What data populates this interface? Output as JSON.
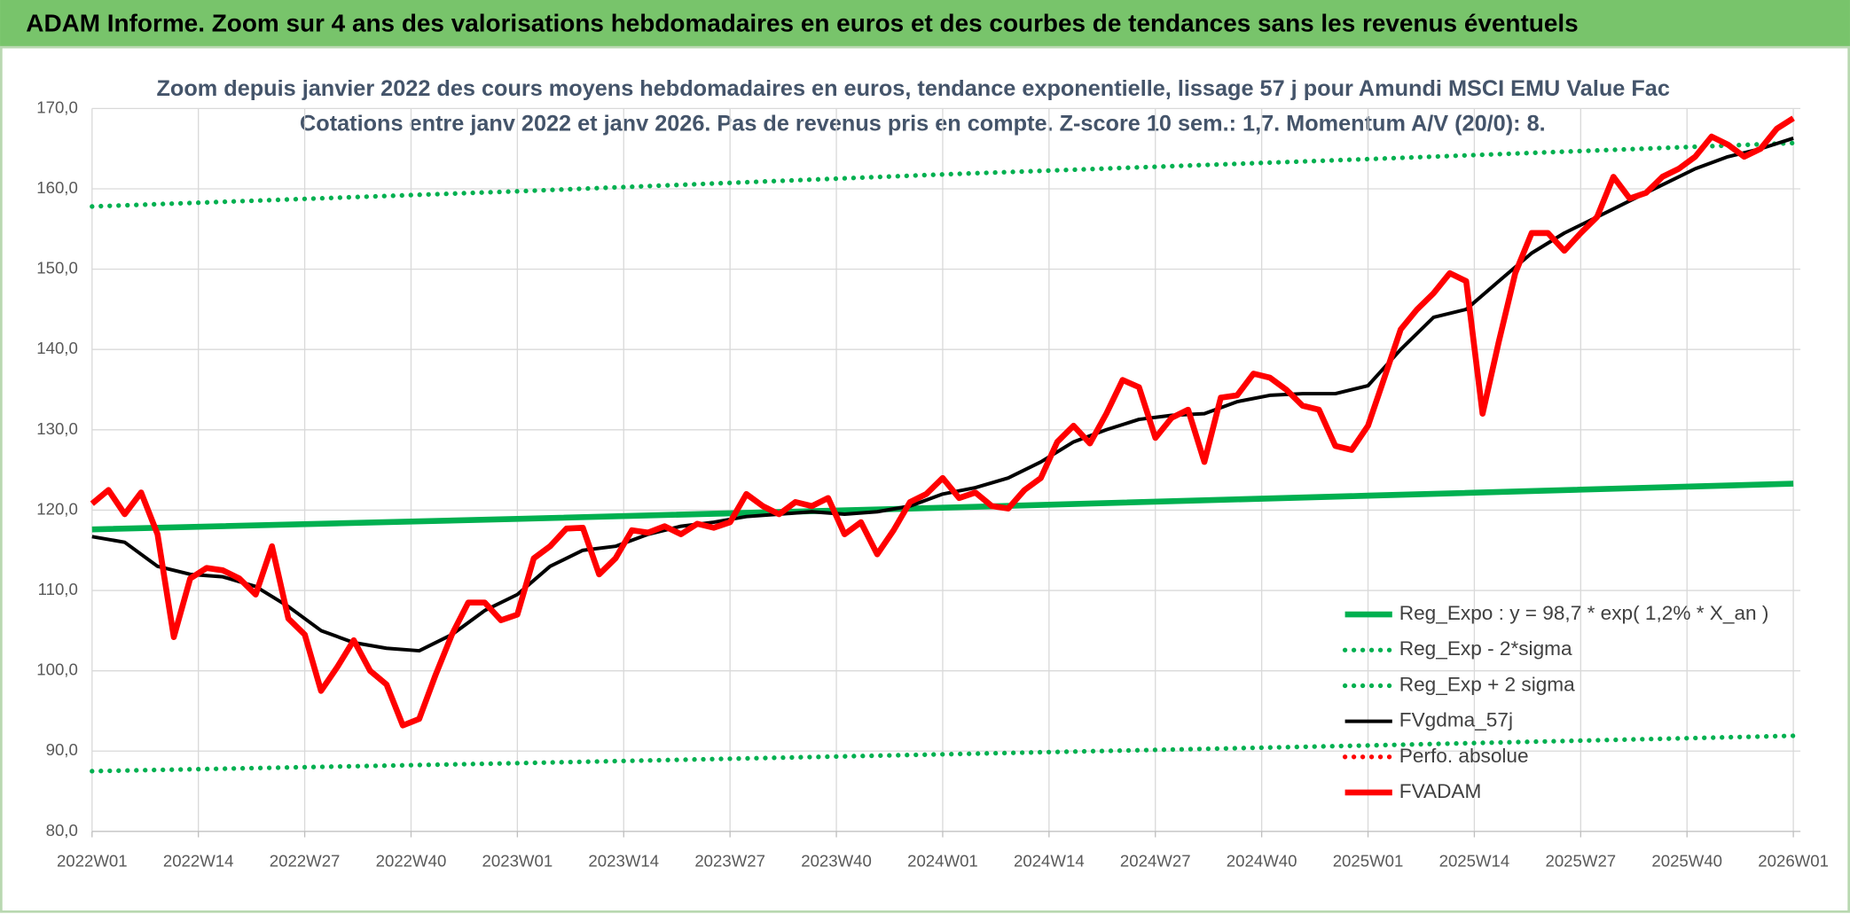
{
  "header": {
    "title": "ADAM Informe. Zoom sur 4 ans des valorisations hebdomadaires en euros et des courbes de tendances sans les revenus éventuels"
  },
  "chart_data": {
    "type": "line",
    "title": "Zoom depuis janvier 2022 des cours moyens hebdomadaires en euros, tendance exponentielle, lissage 57 j pour Amundi MSCI EMU Value Fac",
    "subtitle": "Cotations entre janv 2022 et janv 2026. Pas de revenus pris en compte. Z-score 10 sem.: 1,7. Momentum A/V (20/0): 8.",
    "xlim": [
      0,
      208
    ],
    "xticks": [
      {
        "value": 0,
        "label": "2022W01"
      },
      {
        "value": 13,
        "label": "2022W14"
      },
      {
        "value": 26,
        "label": "2022W27"
      },
      {
        "value": 39,
        "label": "2022W40"
      },
      {
        "value": 52,
        "label": "2023W01"
      },
      {
        "value": 65,
        "label": "2023W14"
      },
      {
        "value": 78,
        "label": "2023W27"
      },
      {
        "value": 91,
        "label": "2023W40"
      },
      {
        "value": 104,
        "label": "2024W01"
      },
      {
        "value": 117,
        "label": "2024W14"
      },
      {
        "value": 130,
        "label": "2024W27"
      },
      {
        "value": 143,
        "label": "2024W40"
      },
      {
        "value": 156,
        "label": "2025W01"
      },
      {
        "value": 169,
        "label": "2025W14"
      },
      {
        "value": 182,
        "label": "2025W27"
      },
      {
        "value": 195,
        "label": "2025W40"
      },
      {
        "value": 208,
        "label": "2026W01"
      }
    ],
    "ylim": [
      80,
      170
    ],
    "yticks": [
      {
        "value": 80,
        "label": "80,0"
      },
      {
        "value": 90,
        "label": "90,0"
      },
      {
        "value": 100,
        "label": "100,0"
      },
      {
        "value": 110,
        "label": "110,0"
      },
      {
        "value": 120,
        "label": "120,0"
      },
      {
        "value": 130,
        "label": "130,0"
      },
      {
        "value": 140,
        "label": "140,0"
      },
      {
        "value": 150,
        "label": "150,0"
      },
      {
        "value": 160,
        "label": "160,0"
      },
      {
        "value": 170,
        "label": "170,0"
      }
    ],
    "grid": true,
    "legend": "lower right",
    "series": [
      {
        "name": "Reg_Expo : y = 98,7 * exp( 1,2% *  X_an )",
        "color": "#00b050",
        "style": "solid",
        "x": [
          0,
          52,
          104,
          156,
          208
        ],
        "values": [
          117.6,
          118.9,
          120.3,
          121.8,
          123.3
        ]
      },
      {
        "name": "Reg_Exp - 2*sigma",
        "color": "#00b050",
        "style": "dotted",
        "x": [
          0,
          52,
          104,
          156,
          208
        ],
        "values": [
          87.5,
          88.5,
          89.6,
          90.7,
          91.9
        ]
      },
      {
        "name": "Reg_Exp + 2 sigma",
        "color": "#00b050",
        "style": "dotted",
        "x": [
          0,
          52,
          104,
          156,
          208
        ],
        "values": [
          157.8,
          159.7,
          161.8,
          163.7,
          165.7
        ]
      },
      {
        "name": "FVgdma_57j",
        "color": "#000000",
        "style": "solid",
        "x": [
          0,
          4,
          8,
          12,
          16,
          20,
          24,
          28,
          32,
          36,
          40,
          44,
          48,
          52,
          56,
          60,
          64,
          68,
          72,
          76,
          80,
          84,
          88,
          92,
          96,
          100,
          104,
          108,
          112,
          116,
          120,
          124,
          128,
          132,
          136,
          140,
          144,
          148,
          152,
          156,
          160,
          164,
          168,
          172,
          176,
          180,
          184,
          188,
          192,
          196,
          200,
          204,
          208
        ],
        "values": [
          116.7,
          116,
          113,
          112,
          111.7,
          110.5,
          108,
          105,
          103.5,
          102.8,
          102.5,
          104.5,
          107.5,
          109.5,
          113,
          115,
          115.5,
          117,
          118,
          118.5,
          119.2,
          119.5,
          119.8,
          119.5,
          119.8,
          120.5,
          122,
          122.8,
          124,
          126,
          128.5,
          130,
          131.3,
          131.8,
          132,
          133.5,
          134.3,
          134.5,
          134.5,
          135.5,
          140,
          144,
          145,
          148.5,
          152,
          154.5,
          156.5,
          158.5,
          160.5,
          162.5,
          164,
          165,
          166.3
        ]
      },
      {
        "name": "Perfo. absolue",
        "color": "#ff0000",
        "style": "dotted",
        "x": [],
        "values": []
      },
      {
        "name": "FVADAM",
        "color": "#ff0000",
        "style": "solid",
        "x": [
          0,
          2,
          4,
          6,
          8,
          10,
          12,
          14,
          16,
          18,
          20,
          22,
          24,
          26,
          28,
          30,
          32,
          34,
          36,
          38,
          40,
          42,
          44,
          46,
          48,
          50,
          52,
          54,
          56,
          58,
          60,
          62,
          64,
          66,
          68,
          70,
          72,
          74,
          76,
          78,
          80,
          82,
          84,
          86,
          88,
          90,
          92,
          94,
          96,
          98,
          100,
          102,
          104,
          106,
          108,
          110,
          112,
          114,
          116,
          118,
          120,
          122,
          124,
          126,
          128,
          130,
          132,
          134,
          136,
          138,
          140,
          142,
          144,
          146,
          148,
          150,
          152,
          154,
          156,
          158,
          160,
          162,
          164,
          166,
          168,
          170,
          172,
          174,
          176,
          178,
          180,
          182,
          184,
          186,
          188,
          190,
          192,
          194,
          196,
          198,
          200,
          202,
          204,
          206,
          208
        ],
        "values": [
          120.8,
          122.5,
          119.5,
          122.2,
          117,
          104.2,
          111.5,
          112.8,
          112.5,
          111.5,
          109.5,
          115.5,
          106.5,
          104.5,
          97.5,
          100.5,
          103.8,
          100,
          98.3,
          93.2,
          94,
          99.5,
          104.5,
          108.5,
          108.5,
          106.3,
          107,
          114,
          115.5,
          117.7,
          117.8,
          112,
          114,
          117.5,
          117.2,
          118,
          117,
          118.3,
          117.8,
          118.5,
          122,
          120.5,
          119.5,
          121,
          120.5,
          121.5,
          117,
          118.5,
          114.5,
          117.5,
          121,
          122,
          124,
          121.5,
          122.2,
          120.5,
          120.2,
          122.5,
          124,
          128.5,
          130.5,
          128.3,
          132,
          136.2,
          135.3,
          129,
          131.5,
          132.5,
          126,
          134,
          134.3,
          137,
          136.5,
          135,
          133,
          132.5,
          128,
          127.5,
          130.5,
          136.5,
          142.5,
          145,
          147,
          149.5,
          148.5,
          132,
          141,
          149.5,
          154.5,
          154.5,
          152.3,
          154.5,
          156.5,
          161.5,
          158.8,
          159.5,
          161.5,
          162.5,
          164,
          166.5,
          165.5,
          164,
          165,
          167.5,
          168.8
        ]
      }
    ]
  }
}
